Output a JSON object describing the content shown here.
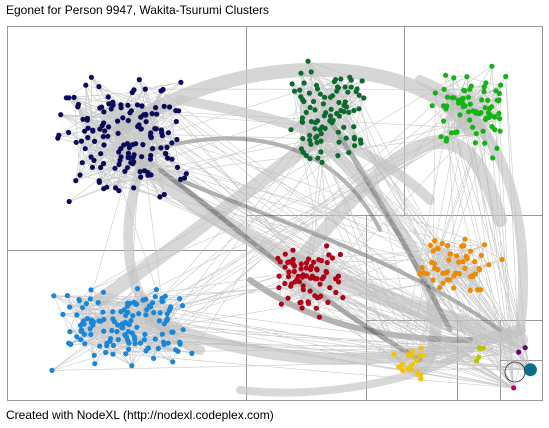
{
  "title": "Egonet for Person 9947, Wakita-Tsurumi Clusters",
  "footer": "Created with NodeXL (http://nodexl.codeplex.com)",
  "colors": {
    "background": "#ffffff",
    "edge": "#bdbdbd",
    "bundle_light": "#c8c8c8",
    "bundle_dark": "#555555",
    "cluster_border": "#999999"
  },
  "clusters": [
    {
      "name": "navy",
      "color": "#0a0a5a",
      "node_count": 150
    },
    {
      "name": "dark-green",
      "color": "#0d6a2e",
      "node_count": 95
    },
    {
      "name": "green",
      "color": "#12b312",
      "node_count": 75
    },
    {
      "name": "blue",
      "color": "#1a86d8",
      "node_count": 140
    },
    {
      "name": "red",
      "color": "#b00018",
      "node_count": 75
    },
    {
      "name": "orange",
      "color": "#ee8a00",
      "node_count": 55
    },
    {
      "name": "yellow",
      "color": "#f2c400",
      "node_count": 18
    },
    {
      "name": "yellow-green",
      "color": "#b8c800",
      "node_count": 5
    },
    {
      "name": "purple",
      "color": "#6a007a",
      "node_count": 2
    },
    {
      "name": "magenta",
      "color": "#c0006a",
      "node_count": 1
    },
    {
      "name": "teal",
      "color": "#0b6e8a",
      "node_count": 1
    }
  ]
}
